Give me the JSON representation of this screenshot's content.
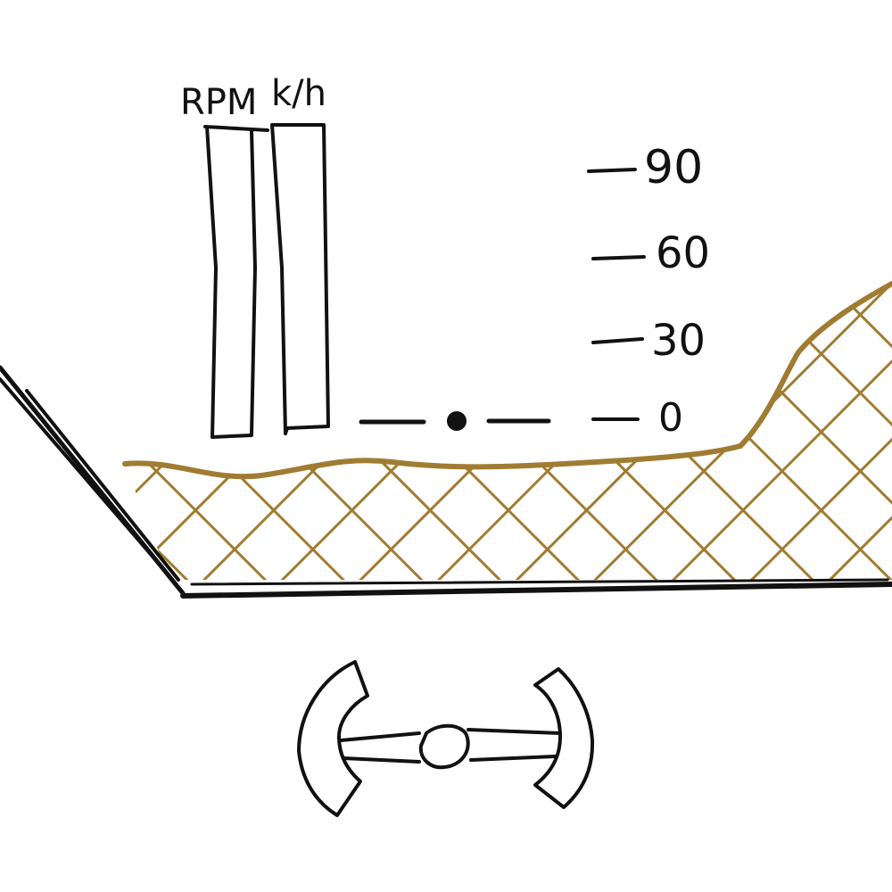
{
  "hud": {
    "gauges": [
      {
        "label": "RPM",
        "level": 0.0
      },
      {
        "label": "k/h",
        "level": 0.0
      }
    ],
    "altitude_scale": {
      "ticks": [
        "90",
        "60",
        "30",
        "0"
      ],
      "marker_value": 0
    }
  },
  "colors": {
    "ink": "#111111",
    "ground": "#a07c32",
    "background": "#ffffff"
  },
  "icons": {
    "vehicle": "steering-yoke-icon",
    "marker": "horizon-dot-icon"
  }
}
